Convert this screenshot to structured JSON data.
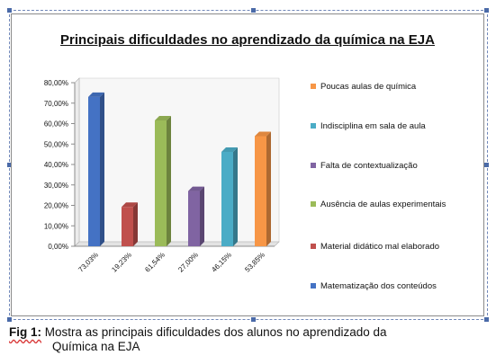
{
  "chart_data": {
    "type": "bar",
    "title": "Principais dificuldades no aprendizado da química na EJA",
    "categories": [
      "73,03%",
      "19,23%",
      "61,54%",
      "27,00%",
      "46,15%",
      "53,85%"
    ],
    "values": [
      73.03,
      19.23,
      61.54,
      27.0,
      46.15,
      53.85
    ],
    "series": [
      {
        "name": "Matematização dos conteúdos",
        "value": 73.03,
        "color": "#4472C4"
      },
      {
        "name": "Material didático mal elaborado",
        "value": 19.23,
        "color": "#C0504D"
      },
      {
        "name": "Ausência de aulas experimentais",
        "value": 61.54,
        "color": "#9BBB59"
      },
      {
        "name": "Falta de contextualização",
        "value": 27.0,
        "color": "#8064A2"
      },
      {
        "name": "Indisciplina em sala de aula",
        "value": 46.15,
        "color": "#4BACC6"
      },
      {
        "name": "Poucas aulas de química",
        "value": 53.85,
        "color": "#F79646"
      }
    ],
    "y_ticks": [
      "0,00%",
      "10,00%",
      "20,00%",
      "30,00%",
      "40,00%",
      "50,00%",
      "60,00%",
      "70,00%",
      "80,00%"
    ],
    "ylim": [
      0,
      80
    ],
    "grid": false,
    "legend_placement": "right",
    "legend_order": [
      "Poucas aulas de química",
      "Indisciplina em sala de aula",
      "Falta de contextualização",
      "Ausência de aulas experimentais",
      "Material didático mal elaborado",
      "Matematização dos conteúdos"
    ]
  },
  "caption": {
    "label": "Fig 1:",
    "line1": "Mostra as principais dificuldades dos alunos no aprendizado da",
    "line2": "Química na EJA"
  }
}
